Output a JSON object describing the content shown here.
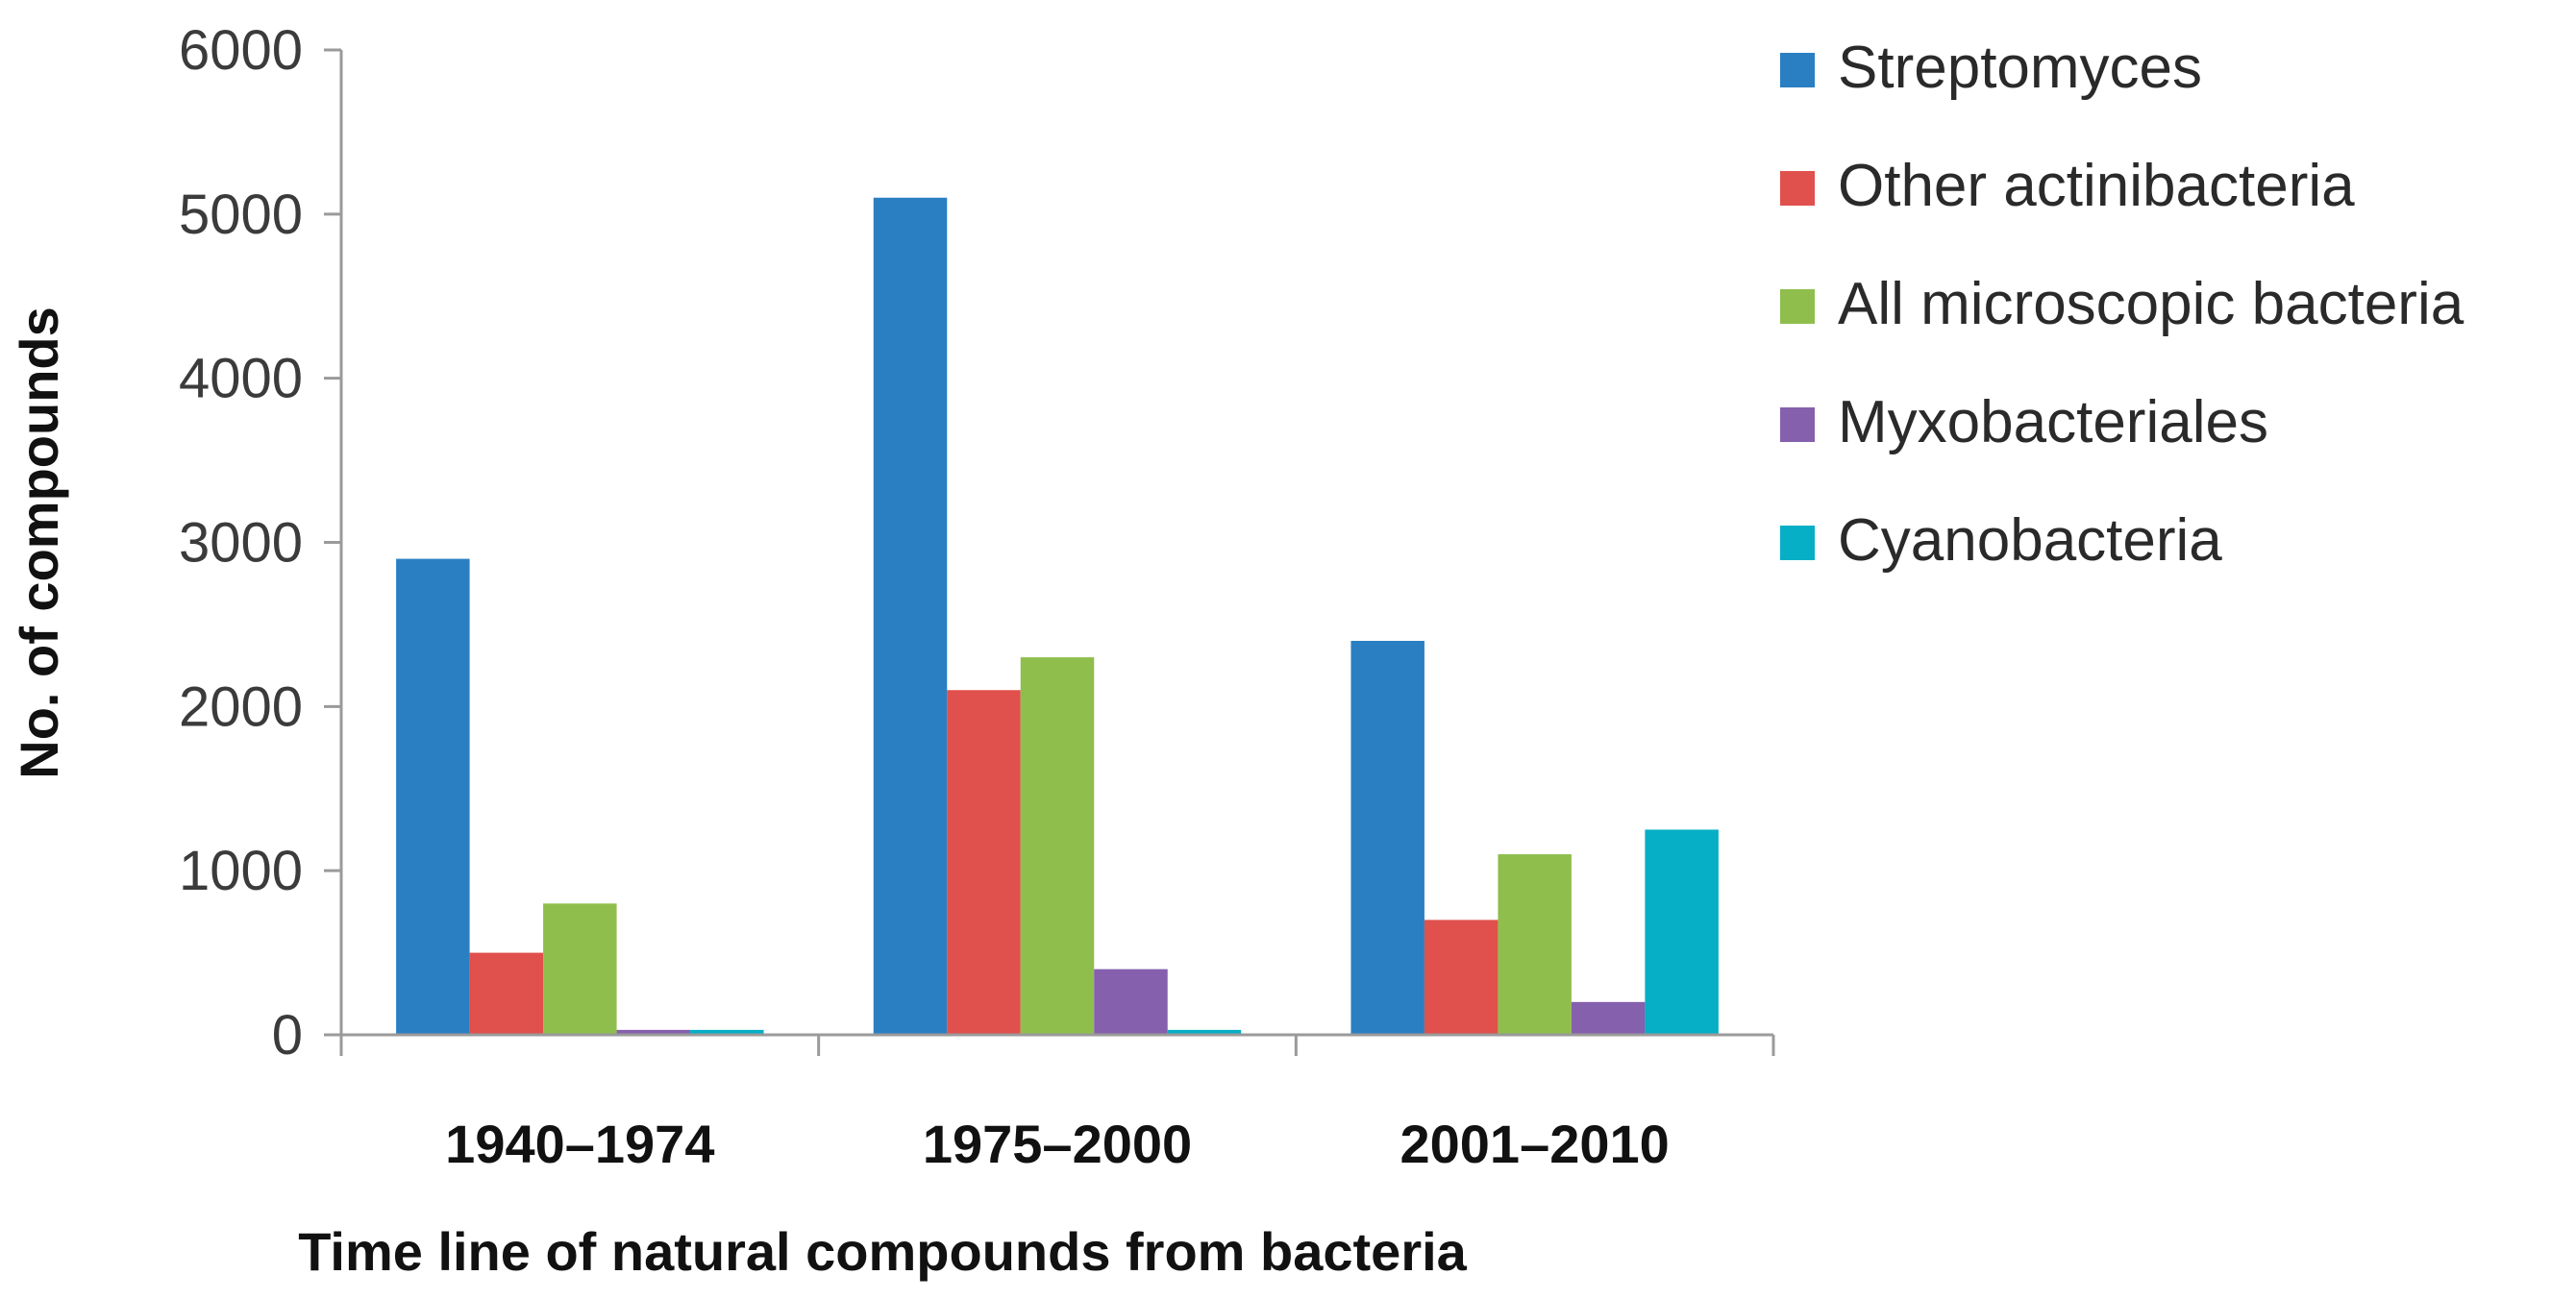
{
  "chart_data": {
    "type": "bar",
    "title": "",
    "xlabel": "Time line of natural compounds from bacteria",
    "ylabel": "No. of compounds",
    "categories": [
      "1940–1974",
      "1975–2000",
      "2001–2010"
    ],
    "ylim": [
      0,
      6000
    ],
    "yticks": [
      0,
      1000,
      2000,
      3000,
      4000,
      5000,
      6000
    ],
    "ytick_labels": [
      "0",
      "1000",
      "2000",
      "3000",
      "4000",
      "5000",
      "6000"
    ],
    "grid": false,
    "legend_position": "right",
    "series": [
      {
        "name": "Streptomyces",
        "color": "#2a7fc2",
        "values": [
          2900,
          5100,
          2400
        ]
      },
      {
        "name": "Other actinibacteria",
        "color": "#e0504c",
        "values": [
          500,
          2100,
          700
        ]
      },
      {
        "name": "All microscopic bacteria",
        "color": "#8fbe4d",
        "values": [
          800,
          2300,
          1100
        ]
      },
      {
        "name": "Myxobacteriales",
        "color": "#8560ad",
        "values": [
          30,
          400,
          200
        ]
      },
      {
        "name": "Cyanobacteria",
        "color": "#06afc6",
        "values": [
          30,
          30,
          1250
        ]
      }
    ]
  }
}
